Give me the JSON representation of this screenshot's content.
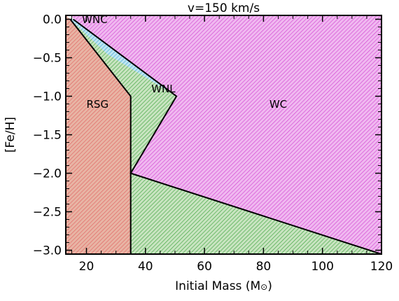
{
  "chart_data": {
    "type": "area",
    "title": "v=150 km/s",
    "xlabel": "Initial Mass (M",
    "xlabel_symbol": "⊙",
    "xlabel_close": ")",
    "ylabel": "[Fe/H]",
    "xlim": [
      13,
      120
    ],
    "ylim": [
      -3.05,
      0.05
    ],
    "xticks": [
      {
        "value": 20,
        "label": "20"
      },
      {
        "value": 40,
        "label": "40"
      },
      {
        "value": 60,
        "label": "60"
      },
      {
        "value": 80,
        "label": "80"
      },
      {
        "value": 100,
        "label": "100"
      },
      {
        "value": 120,
        "label": "120"
      }
    ],
    "yticks": [
      {
        "value": 0.0,
        "label": "0.0"
      },
      {
        "value": -0.5,
        "label": "−0.5"
      },
      {
        "value": -1.0,
        "label": "−1.0"
      },
      {
        "value": -1.5,
        "label": "−1.5"
      },
      {
        "value": -2.0,
        "label": "−2.0"
      },
      {
        "value": -2.5,
        "label": "−2.5"
      },
      {
        "value": -3.0,
        "label": "−3.0"
      }
    ],
    "hatched": true,
    "regions": [
      {
        "name": "RSG",
        "color": "#e06060",
        "fill": "#e8b4a4",
        "polygon": [
          [
            13,
            0.05
          ],
          [
            14.5,
            0.0
          ],
          [
            35,
            -1.0
          ],
          [
            35,
            -3.05
          ],
          [
            13,
            -3.05
          ]
        ],
        "label": {
          "x": 20,
          "y": -1.15,
          "text": "RSG"
        }
      },
      {
        "name": "WNL",
        "color": "#3aa23a",
        "fill": "#c8e4c0",
        "polygon": [
          [
            14.5,
            0.0
          ],
          [
            16,
            0.0
          ],
          [
            50.5,
            -1.0
          ],
          [
            35,
            -2.0
          ],
          [
            120,
            -3.05
          ],
          [
            35,
            -3.05
          ],
          [
            35,
            -1.0
          ]
        ],
        "label": {
          "x": 42,
          "y": -0.95,
          "text": "WNL"
        }
      },
      {
        "name": "WNC",
        "color": "#3a9fd0",
        "fill": "#bfe6f2",
        "polygon": [
          [
            14.5,
            0.0
          ],
          [
            16,
            0.0
          ],
          [
            50.5,
            -1.0
          ],
          [
            27,
            -0.45
          ]
        ],
        "label": {
          "x": 18.5,
          "y": -0.05,
          "text": "WNC"
        }
      },
      {
        "name": "WC",
        "color": "#d040d0",
        "fill": "#f0b8f0",
        "polygon": [
          [
            14.5,
            0.05
          ],
          [
            120,
            0.05
          ],
          [
            120,
            -3.05
          ],
          [
            35,
            -2.0
          ],
          [
            50.5,
            -1.0
          ],
          [
            16,
            0.0
          ]
        ],
        "label": {
          "x": 82,
          "y": -1.15,
          "text": "WC"
        }
      }
    ],
    "boundaries": [
      [
        [
          14.5,
          0.0
        ],
        [
          35,
          -1.0
        ],
        [
          35,
          -3.05
        ]
      ],
      [
        [
          15.5,
          0.0
        ],
        [
          50.5,
          -1.0
        ],
        [
          35,
          -2.0
        ],
        [
          120,
          -3.05
        ]
      ]
    ]
  }
}
